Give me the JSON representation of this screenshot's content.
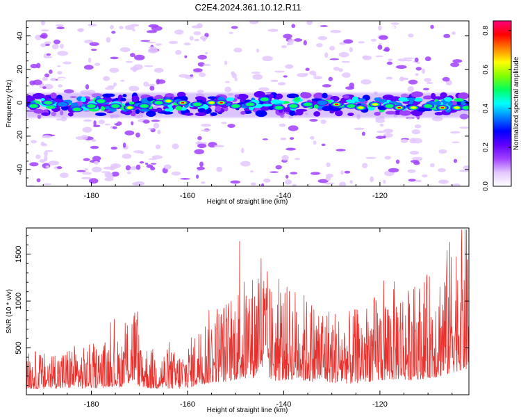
{
  "figure": {
    "title": "C2E4.2024.361.10.12.R11"
  },
  "chart_data": [
    {
      "type": "heatmap",
      "title": "",
      "xlabel": "Height of straight line (km)",
      "ylabel": "Frequency (Hz)",
      "xlim": [
        -193.5,
        -101.5
      ],
      "ylim": [
        -50,
        49
      ],
      "xticks": [
        -180,
        -160,
        -140,
        -120
      ],
      "yticks": [
        -40,
        -20,
        0,
        20,
        40
      ],
      "colorbar": {
        "label": "Normalized spectral amplitude",
        "range": [
          0.0,
          0.85
        ],
        "ticks": [
          "0.0",
          "0.2",
          "0.4",
          "0.6",
          "0.8"
        ],
        "tick_values": [
          0.0,
          0.2,
          0.4,
          0.6,
          0.8
        ],
        "colors": [
          "#ffffff",
          "#e3c7ff",
          "#a040ff",
          "#6000ff",
          "#0000ff",
          "#0080ff",
          "#00ffff",
          "#00ff60",
          "#80ff00",
          "#ffff00",
          "#ff8000",
          "#ff0000",
          "#ff0080"
        ]
      },
      "ridge": {
        "frequency_hz": -1,
        "blobs": [
          {
            "x": -192,
            "y": -2,
            "v": 0.55
          },
          {
            "x": -189,
            "y": 0,
            "v": 0.6
          },
          {
            "x": -186,
            "y": -1,
            "v": 0.45
          },
          {
            "x": -183,
            "y": -4,
            "v": 0.5
          },
          {
            "x": -180,
            "y": -2,
            "v": 0.55
          },
          {
            "x": -178,
            "y": 1,
            "v": 0.5
          },
          {
            "x": -175,
            "y": -2,
            "v": 0.5
          },
          {
            "x": -172,
            "y": -3,
            "v": 0.78
          },
          {
            "x": -169,
            "y": -2,
            "v": 0.6
          },
          {
            "x": -166,
            "y": 0,
            "v": 0.5
          },
          {
            "x": -164,
            "y": 1,
            "v": 0.72
          },
          {
            "x": -161,
            "y": 0,
            "v": 0.8
          },
          {
            "x": -158,
            "y": -1,
            "v": 0.55
          },
          {
            "x": -155,
            "y": 0,
            "v": 0.78
          },
          {
            "x": -153,
            "y": 0,
            "v": 0.82
          },
          {
            "x": -150,
            "y": -2,
            "v": 0.6
          },
          {
            "x": -147,
            "y": -1,
            "v": 0.55
          },
          {
            "x": -144,
            "y": 2,
            "v": 0.5
          },
          {
            "x": -141,
            "y": -3,
            "v": 0.6
          },
          {
            "x": -138,
            "y": -2,
            "v": 0.55
          },
          {
            "x": -135,
            "y": -1,
            "v": 0.5
          },
          {
            "x": -132,
            "y": 0,
            "v": 0.45
          },
          {
            "x": -129,
            "y": -1,
            "v": 0.8
          },
          {
            "x": -126,
            "y": -2,
            "v": 0.55
          },
          {
            "x": -124,
            "y": -3,
            "v": 0.7
          },
          {
            "x": -121,
            "y": -1,
            "v": 0.75
          },
          {
            "x": -118,
            "y": -2,
            "v": 0.5
          },
          {
            "x": -116,
            "y": -3,
            "v": 0.85
          },
          {
            "x": -113,
            "y": -3,
            "v": 0.65
          },
          {
            "x": -110,
            "y": -2,
            "v": 0.6
          },
          {
            "x": -107,
            "y": -3,
            "v": 0.8
          },
          {
            "x": -104,
            "y": -3,
            "v": 0.7
          },
          {
            "x": -102,
            "y": -3,
            "v": 0.55
          }
        ]
      }
    },
    {
      "type": "line",
      "title": "",
      "xlabel": "Height of straight line (km)",
      "ylabel": "SNR (10 * v/v)",
      "xlim": [
        -193.5,
        -101.5
      ],
      "ylim": [
        0,
        1780
      ],
      "xticks": [
        -180,
        -160,
        -140,
        -120
      ],
      "yticks": [
        500,
        1000,
        1500
      ],
      "series": [
        {
          "color": "#e8302c",
          "x": [
            -193.5,
            -192,
            -190,
            -188,
            -186,
            -184,
            -182,
            -180,
            -178,
            -176,
            -174,
            -172,
            -171,
            -170,
            -168,
            -166,
            -164,
            -162,
            -160,
            -158,
            -156,
            -154,
            -152,
            -150,
            -148,
            -146,
            -145,
            -144,
            -142,
            -140,
            -138,
            -136,
            -134,
            -132,
            -130,
            -128,
            -126,
            -124,
            -122,
            -120,
            -118,
            -116,
            -114,
            -112,
            -110,
            -108,
            -106,
            -105,
            -104,
            -103,
            -102,
            -101.5
          ],
          "y": [
            250,
            260,
            240,
            280,
            260,
            300,
            270,
            300,
            290,
            350,
            320,
            500,
            600,
            350,
            280,
            260,
            270,
            250,
            300,
            400,
            480,
            550,
            560,
            650,
            680,
            720,
            1000,
            780,
            600,
            620,
            650,
            600,
            560,
            550,
            520,
            500,
            480,
            520,
            560,
            600,
            640,
            680,
            620,
            660,
            700,
            760,
            860,
            950,
            1000,
            1050,
            1060,
            1040
          ]
        }
      ]
    }
  ]
}
